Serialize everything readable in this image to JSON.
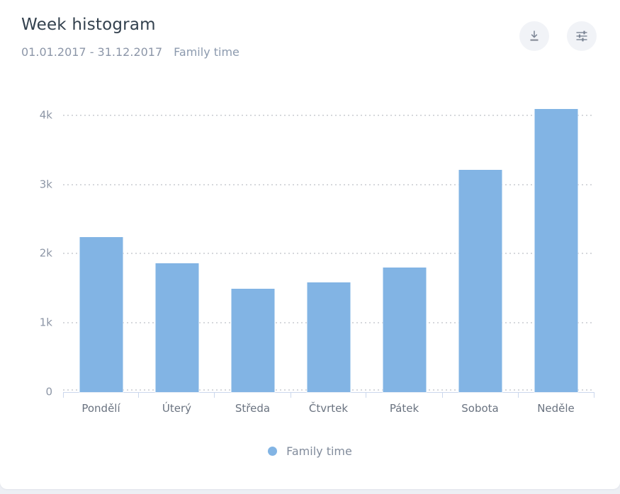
{
  "header": {
    "title": "Week histogram",
    "date_range": "01.01.2017 - 31.12.2017",
    "filter_label": "Family time"
  },
  "chart_data": {
    "type": "bar",
    "title": "Week histogram",
    "categories": [
      "Pondělí",
      "Úterý",
      "Středa",
      "Čtvrtek",
      "Pátek",
      "Sobota",
      "Neděle"
    ],
    "series": [
      {
        "name": "Family time",
        "values": [
          2240,
          1860,
          1490,
          1590,
          1800,
          3210,
          4090
        ]
      }
    ],
    "xlabel": "",
    "ylabel": "",
    "ylim": [
      0,
      4235
    ],
    "yticks": [
      0,
      1000,
      2000,
      3000,
      4000
    ],
    "ytick_labels": [
      "0",
      "1k",
      "2k",
      "3k",
      "4k"
    ],
    "grid": "horizontal-dotted",
    "legend_position": "bottom",
    "bar_color": "#82B4E4"
  },
  "legend": {
    "items": [
      {
        "label": "Family time",
        "color": "#82B4E4"
      }
    ]
  },
  "colors": {
    "accent_blue": "#82B4E4",
    "title_text": "#33414E",
    "muted_text": "#8C96A8",
    "x_label_text": "#6A7380",
    "axis_line": "#CBD7EC",
    "grid_dot": "#D6D8DC",
    "icon": "#7B8494",
    "icon_circle_bg": "#F1F3F7",
    "card_bg": "#FFFFFF",
    "page_bg": "#EDEFF4"
  }
}
